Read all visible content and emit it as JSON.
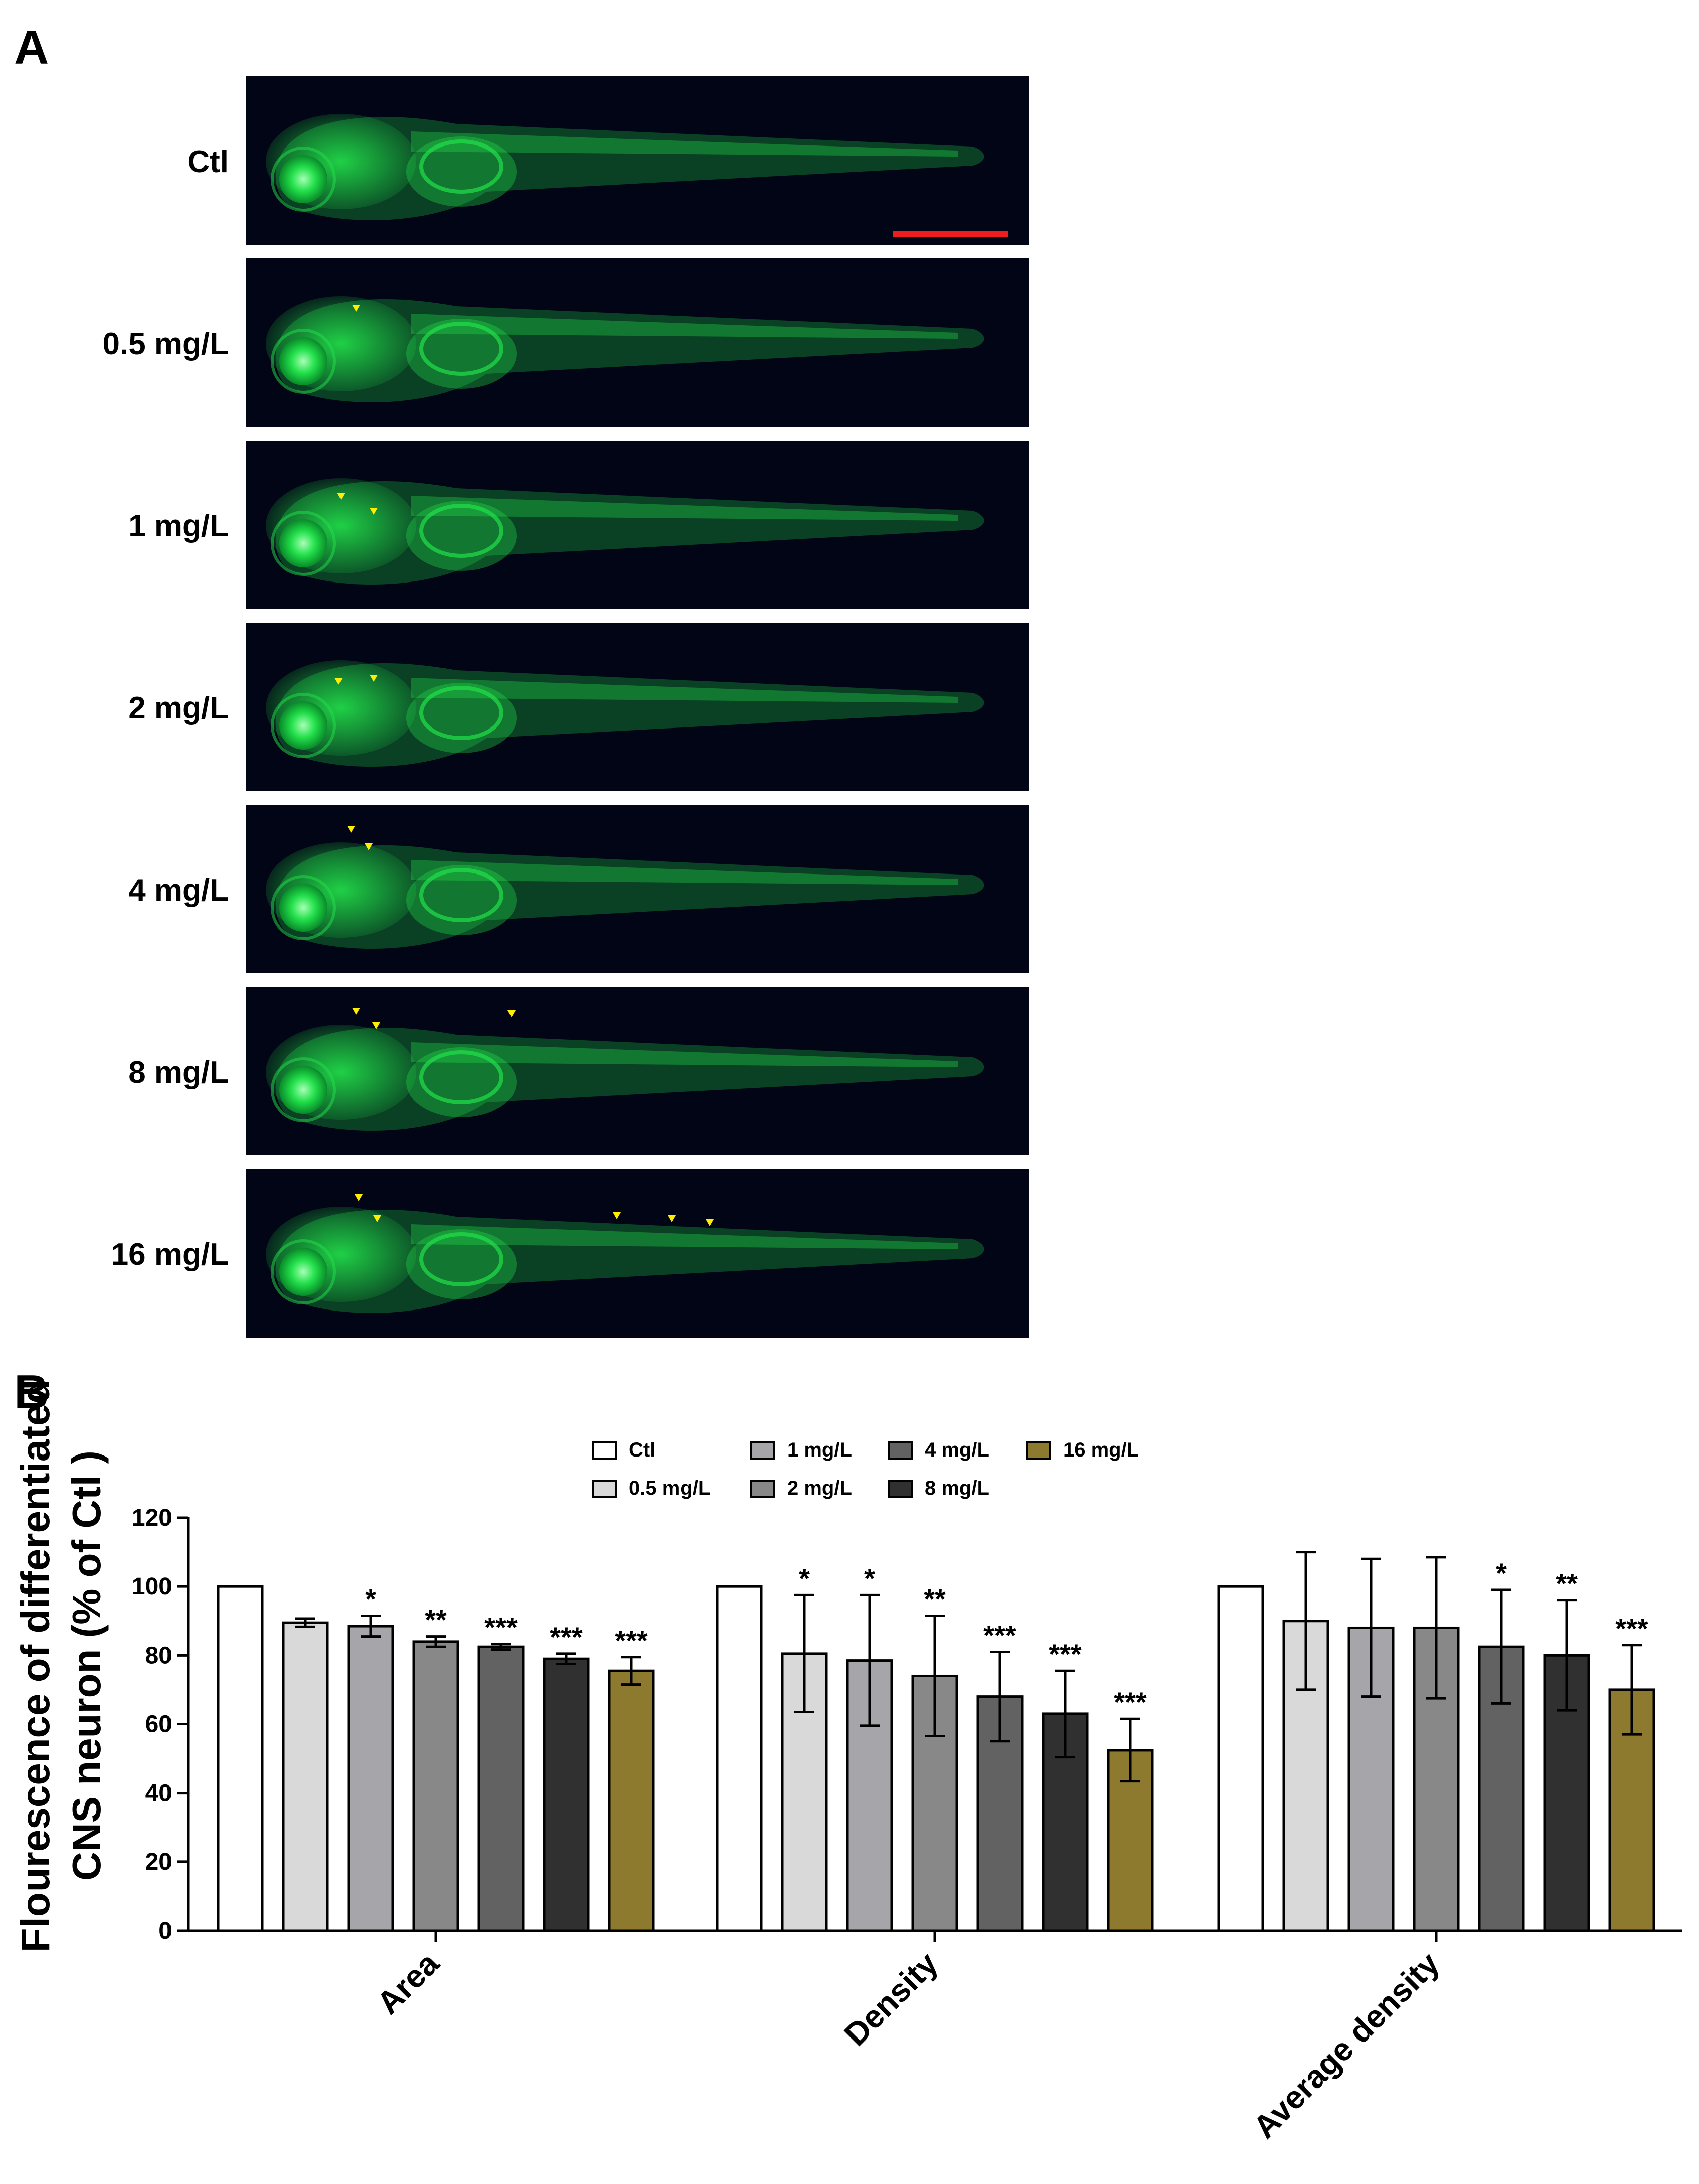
{
  "panel_a": {
    "letter": "A",
    "rows": [
      {
        "label": "Ctl",
        "arrows": 0
      },
      {
        "label": "0.5 mg/L",
        "arrows": 1
      },
      {
        "label": "1 mg/L",
        "arrows": 2
      },
      {
        "label": "2 mg/L",
        "arrows": 2
      },
      {
        "label": "4 mg/L",
        "arrows": 2
      },
      {
        "label": "8 mg/L",
        "arrows": 3
      },
      {
        "label": "16 mg/L",
        "arrows": 5
      }
    ],
    "colors": {
      "fluorescence": "#22e04a",
      "background": "#020515",
      "arrow": "#ffee00",
      "scale_bar": "#ee1c1c"
    }
  },
  "panel_b": {
    "letter": "B"
  },
  "legend": [
    {
      "label": "Ctl",
      "color": "#ffffff"
    },
    {
      "label": "0.5 mg/L",
      "color": "#d9d9d9"
    },
    {
      "label": "1 mg/L",
      "color": "#a6a6aa"
    },
    {
      "label": "2 mg/L",
      "color": "#888888"
    },
    {
      "label": "4 mg/L",
      "color": "#626262"
    },
    {
      "label": "8 mg/L",
      "color": "#303030"
    },
    {
      "label": "16 mg/L",
      "color": "#8d7a2e"
    }
  ],
  "chart_data": {
    "type": "bar",
    "title": "",
    "ylabel": "Flourescence of differentiated CNS neuron (% of Ctl)",
    "ylabel_lines": [
      "Flourescence of differentiated",
      "CNS neuron  (% of Ctl )"
    ],
    "xlabel": "",
    "ylim": [
      0,
      120
    ],
    "yticks": [
      0,
      20,
      40,
      60,
      80,
      100,
      120
    ],
    "categories": [
      "Area",
      "Density",
      "Average density"
    ],
    "series": [
      {
        "name": "Ctl",
        "values": [
          100,
          100,
          100
        ],
        "errors": [
          0,
          0,
          0
        ],
        "sig": [
          "",
          "",
          ""
        ]
      },
      {
        "name": "0.5 mg/L",
        "values": [
          89.5,
          80.5,
          90
        ],
        "errors": [
          1.2,
          17,
          20
        ],
        "sig": [
          "",
          "*",
          ""
        ]
      },
      {
        "name": "1 mg/L",
        "values": [
          88.5,
          78.5,
          88
        ],
        "errors": [
          3,
          19,
          20
        ],
        "sig": [
          "*",
          "*",
          ""
        ]
      },
      {
        "name": "2 mg/L",
        "values": [
          84,
          74,
          88
        ],
        "errors": [
          1.5,
          17.5,
          20.5
        ],
        "sig": [
          "**",
          "**",
          ""
        ]
      },
      {
        "name": "4 mg/L",
        "values": [
          82.5,
          68,
          82.5
        ],
        "errors": [
          0.8,
          13,
          16.5
        ],
        "sig": [
          "***",
          "***",
          "*"
        ]
      },
      {
        "name": "8 mg/L",
        "values": [
          79,
          63,
          80
        ],
        "errors": [
          1.5,
          12.5,
          16
        ],
        "sig": [
          "***",
          "***",
          "**"
        ]
      },
      {
        "name": "16 mg/L",
        "values": [
          75.5,
          52.5,
          70
        ],
        "errors": [
          4,
          9,
          13
        ],
        "sig": [
          "***",
          "***",
          "***"
        ]
      }
    ]
  }
}
